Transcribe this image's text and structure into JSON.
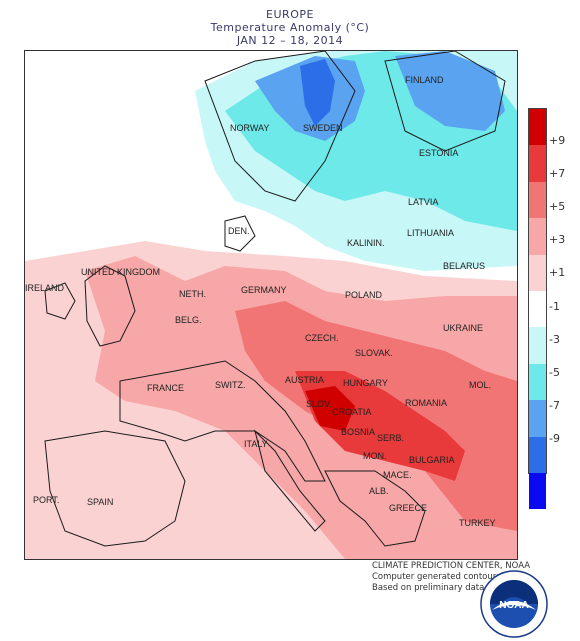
{
  "header": {
    "region": "EUROPE",
    "subtitle": "Temperature Anomaly (°C)",
    "period": "JAN 12 – 18, 2014"
  },
  "map": {
    "country_labels": [
      "NORWAY",
      "SWEDEN",
      "FINLAND",
      "ESTONIA",
      "LATVIA",
      "LITHUANIA",
      "KALININ.",
      "BELARUS",
      "DEN.",
      "UNITED KINGDOM",
      "IRELAND",
      "NETH.",
      "BELG.",
      "GERMANY",
      "POLAND",
      "UKRAINE",
      "CZECH.",
      "SLOVAK.",
      "FRANCE",
      "SWITZ.",
      "AUSTRIA",
      "HUNGARY",
      "SLOV.",
      "CROATIA",
      "ROMANIA",
      "MOL.",
      "BOSNIA",
      "SERB.",
      "ITALY",
      "MON.",
      "BULGARIA",
      "MACE.",
      "ALB.",
      "GREECE",
      "TURKEY",
      "PORT.",
      "SPAIN"
    ]
  },
  "legend": {
    "colors": [
      "#d00000",
      "#e83a3a",
      "#f27575",
      "#f7a7a7",
      "#fbd2d2",
      "#ffffff",
      "#c8f7f7",
      "#6ee9e9",
      "#5aa3f0",
      "#2b6ee8",
      "#0a0af0"
    ],
    "ticks": [
      "+9",
      "+7",
      "+5",
      "+3",
      "+1",
      "-1",
      "-3",
      "-5",
      "-7",
      "-9"
    ]
  },
  "credits": {
    "line1": "CLIMATE PREDICTION CENTER, NOAA",
    "line2": "Computer generated contours",
    "line3": "Based on preliminary data"
  },
  "logo": {
    "text": "NOAA"
  }
}
